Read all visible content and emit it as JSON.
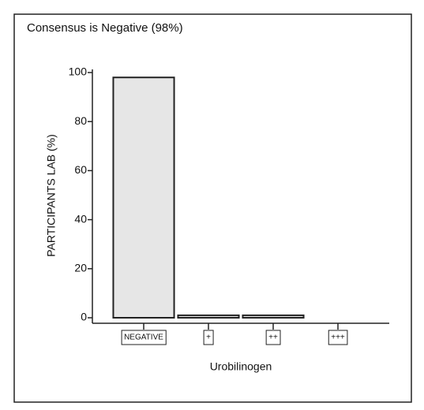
{
  "chart_data": {
    "type": "bar",
    "title": "Consensus is Negative (98%)",
    "x_label": "Urobilinogen",
    "y_label": "PARTICIPANTS LAB (%)",
    "categories": [
      "NEGATIVE",
      "+",
      "++",
      "+++"
    ],
    "values": [
      98,
      1,
      1,
      0
    ],
    "color": "#e6e6e6",
    "ylim": [
      0,
      100
    ],
    "yticks": [
      0,
      20,
      40,
      60,
      80,
      100
    ],
    "grid": false
  }
}
